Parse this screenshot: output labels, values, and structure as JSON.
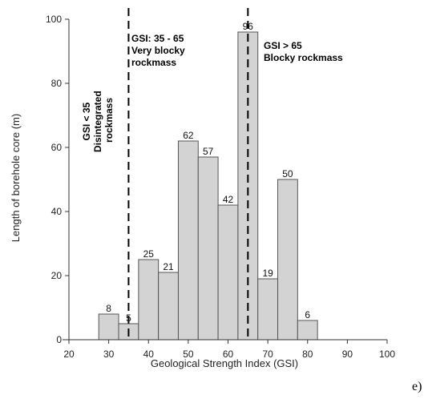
{
  "chart_data": {
    "type": "bar",
    "title": "",
    "xlabel": "Geological Strength Index (GSI)",
    "ylabel": "Length of borehole core (m)",
    "xlim": [
      20,
      100
    ],
    "ylim": [
      0,
      100
    ],
    "xticks": [
      20,
      30,
      40,
      50,
      60,
      70,
      80,
      90,
      100
    ],
    "yticks": [
      0,
      20,
      40,
      60,
      80,
      100
    ],
    "bin_width": 5,
    "bars": [
      {
        "x": 30,
        "value": 8,
        "label": "8"
      },
      {
        "x": 35,
        "value": 5,
        "label": "5"
      },
      {
        "x": 40,
        "value": 25,
        "label": "25"
      },
      {
        "x": 45,
        "value": 21,
        "label": "21"
      },
      {
        "x": 50,
        "value": 62,
        "label": "62"
      },
      {
        "x": 55,
        "value": 57,
        "label": "57"
      },
      {
        "x": 60,
        "value": 42,
        "label": "42"
      },
      {
        "x": 65,
        "value": 96,
        "label": "96"
      },
      {
        "x": 70,
        "value": 19,
        "label": "19"
      },
      {
        "x": 75,
        "value": 50,
        "label": "50"
      },
      {
        "x": 80,
        "value": 6,
        "label": "6"
      }
    ],
    "thresholds": [
      35,
      65
    ],
    "grid": false,
    "bar_color": "#d3d3d3",
    "bar_edge_color": "#555555",
    "annotations": [
      {
        "id": "low",
        "lines": [
          "GSI < 35",
          "Disintegrated",
          "rockmass"
        ],
        "rotated": true
      },
      {
        "id": "mid",
        "lines": [
          "GSI: 35 - 65",
          "Very blocky",
          "rockmass"
        ],
        "rotated": false
      },
      {
        "id": "high",
        "lines": [
          "GSI > 65",
          "Blocky rockmass"
        ],
        "rotated": false
      }
    ]
  },
  "panel_label": "e)"
}
